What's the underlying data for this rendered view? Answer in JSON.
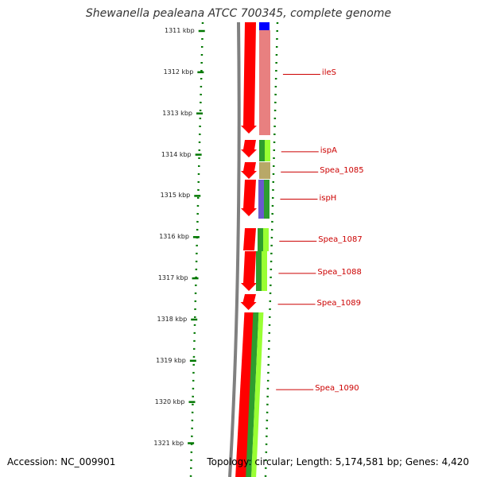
{
  "title": "Shewanella pealeana ATCC 700345, complete genome",
  "footer": {
    "accession": "Accession: NC_009901",
    "topology": "Topology: circular; Length: 5,174,581 bp; Genes: 4,420"
  },
  "colors": {
    "forward_cds": "#ff0000",
    "backbone": "#808080",
    "tick": "#007700",
    "label": "#cc0000",
    "blue_feature": "#0000ff",
    "pink_feature": "#e88080",
    "olive_feature": "#b8a868",
    "purple_feature": "#6a5acd",
    "green_feature": "#2e9e2e",
    "lime_feature": "#99ff33"
  },
  "scale_labels": [
    {
      "text": "1311 kbp",
      "kb": 1311
    },
    {
      "text": "1312 kbp",
      "kb": 1312
    },
    {
      "text": "1313 kbp",
      "kb": 1313
    },
    {
      "text": "1314 kbp",
      "kb": 1314
    },
    {
      "text": "1315 kbp",
      "kb": 1315
    },
    {
      "text": "1316 kbp",
      "kb": 1316
    },
    {
      "text": "1317 kbp",
      "kb": 1317
    },
    {
      "text": "1318 kbp",
      "kb": 1318
    },
    {
      "text": "1319 kbp",
      "kb": 1319
    },
    {
      "text": "1320 kbp",
      "kb": 1320
    },
    {
      "text": "1321 kbp",
      "kb": 1321
    }
  ],
  "gene_labels": [
    {
      "text": "ileS",
      "kb": 1312.05
    },
    {
      "text": "ispA",
      "kb": 1313.93
    },
    {
      "text": "Spea_1085",
      "kb": 1314.42
    },
    {
      "text": "ispH",
      "kb": 1315.08
    },
    {
      "text": "Spea_1087",
      "kb": 1316.1
    },
    {
      "text": "Spea_1088",
      "kb": 1316.88
    },
    {
      "text": "Spea_1089",
      "kb": 1317.63
    },
    {
      "text": "Spea_1090",
      "kb": 1319.7
    }
  ]
}
